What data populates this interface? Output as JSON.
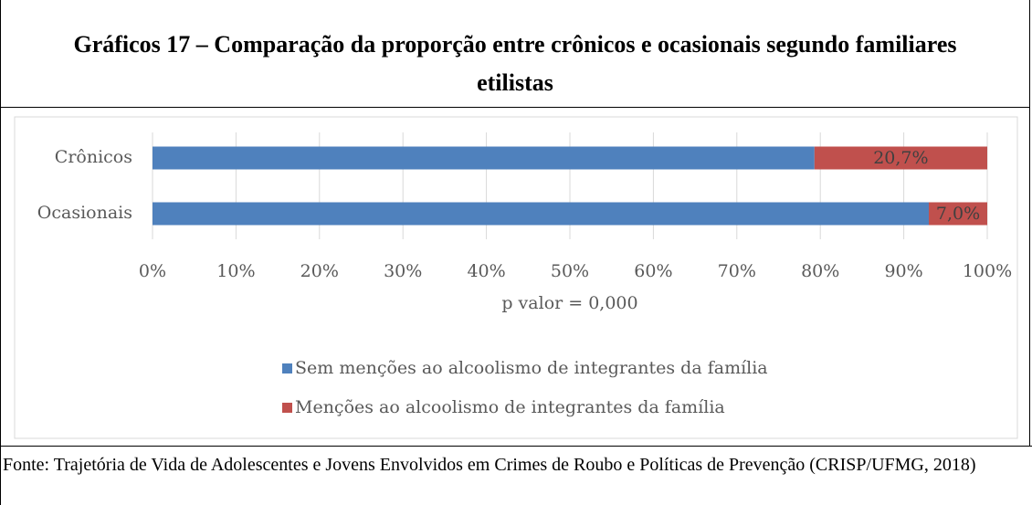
{
  "title": "Gráficos 17 – Comparação da proporção entre crônicos e ocasionais segundo familiares etilistas",
  "chart_data": {
    "type": "stacked-barh",
    "categories": [
      "Crônicos",
      "Ocasionais"
    ],
    "series": [
      {
        "name": "Sem menções ao alcoolismo de integrantes da família",
        "color": "#4f81bd",
        "values": [
          79.3,
          93.0
        ]
      },
      {
        "name": "Menções ao alcoolismo de integrantes da família",
        "color": "#c0504d",
        "values": [
          20.7,
          7.0
        ],
        "value_labels": [
          "20,7%",
          "7,0%"
        ]
      }
    ],
    "xlabel": "p valor = 0,000",
    "xlim": [
      0,
      100
    ],
    "xticks": [
      {
        "value": 0,
        "label": "0%"
      },
      {
        "value": 10,
        "label": "10%"
      },
      {
        "value": 20,
        "label": "20%"
      },
      {
        "value": 30,
        "label": "30%"
      },
      {
        "value": 40,
        "label": "40%"
      },
      {
        "value": 50,
        "label": "50%"
      },
      {
        "value": 60,
        "label": "60%"
      },
      {
        "value": 70,
        "label": "70%"
      },
      {
        "value": 80,
        "label": "80%"
      },
      {
        "value": 90,
        "label": "90%"
      },
      {
        "value": 100,
        "label": "100%"
      }
    ],
    "grid": true,
    "legend": "bottom"
  },
  "footer": "Fonte: Trajetória de Vida de Adolescentes e Jovens Envolvidos em Crimes de Roubo e Políticas de Prevenção (CRISP/UFMG, 2018)"
}
